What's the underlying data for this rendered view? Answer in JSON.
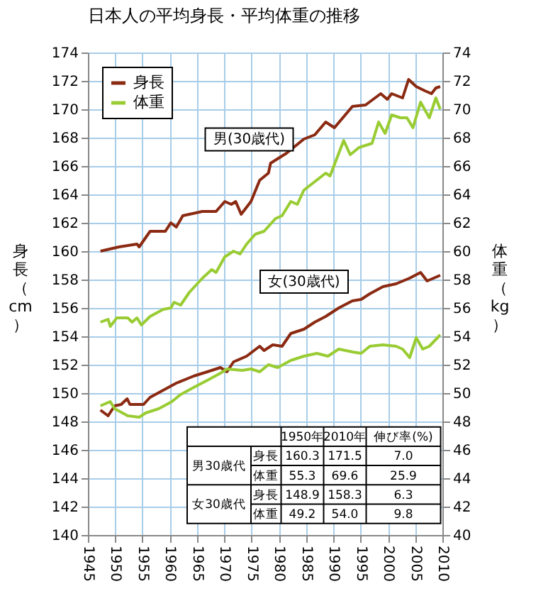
{
  "chart_data": {
    "type": "line",
    "title": "日本人の平均身長・平均体重の推移",
    "ylabel": "身長（cm）",
    "y2label": "体重（kg）",
    "xlim": [
      1945,
      2010
    ],
    "xticks": [
      1945,
      1950,
      1955,
      1960,
      1965,
      1970,
      1975,
      1980,
      1985,
      1990,
      1995,
      2000,
      2005,
      2010
    ],
    "ylim": [
      140,
      174
    ],
    "yticks": [
      140,
      142,
      144,
      146,
      148,
      150,
      152,
      154,
      156,
      158,
      160,
      162,
      164,
      166,
      168,
      170,
      172,
      174
    ],
    "y2lim": [
      40,
      74
    ],
    "y2ticks": [
      40,
      42,
      44,
      46,
      48,
      50,
      52,
      54,
      56,
      58,
      60,
      62,
      64,
      66,
      68,
      70,
      72,
      74
    ],
    "grid": true,
    "legend": "top left",
    "series": [
      {
        "name": "身長",
        "color": "#8b2a12",
        "x": [
          1947.3,
          1950.7,
          1954.0,
          1954.4,
          1956.4,
          1959.2,
          1960.2,
          1961.2,
          1962.4,
          1966.0,
          1968.5,
          1970.1,
          1971.3,
          1972.1,
          1973.1,
          1974.9,
          1976.5,
          1978.1,
          1978.5,
          1981.4,
          1984.6,
          1986.6,
          1988.6,
          1990.2,
          1993.5,
          1995.9,
          1998.7,
          1999.9,
          2000.7,
          2002.7,
          2003.8,
          2005.2,
          2006.8,
          2008.0,
          2008.8,
          2009.6
        ],
        "values": [
          160.0,
          160.3,
          160.5,
          160.3,
          161.4,
          161.4,
          162.0,
          161.7,
          162.5,
          162.8,
          162.8,
          163.5,
          163.3,
          163.5,
          162.6,
          163.5,
          165.0,
          165.5,
          166.2,
          166.9,
          167.9,
          168.2,
          169.1,
          168.7,
          170.2,
          170.3,
          171.1,
          170.7,
          171.1,
          170.8,
          172.1,
          171.6,
          171.3,
          171.1,
          171.5,
          171.6
        ]
      },
      {
        "name": "体重",
        "color": "#99cc33",
        "axis": "y2",
        "x": [
          1947.3,
          1948.7,
          1949.1,
          1950.3,
          1952.3,
          1953.1,
          1954.0,
          1954.8,
          1956.4,
          1958.8,
          1960.2,
          1960.8,
          1962.0,
          1963.6,
          1964.8,
          1966.0,
          1967.7,
          1968.5,
          1970.1,
          1971.7,
          1972.9,
          1974.1,
          1975.7,
          1977.3,
          1979.4,
          1980.6,
          1982.2,
          1983.4,
          1984.6,
          1986.6,
          1988.6,
          1989.4,
          1991.9,
          1993.1,
          1994.7,
          1997.1,
          1998.3,
          1999.5,
          2000.7,
          2002.3,
          2003.5,
          2004.6,
          2006.0,
          2007.6,
          2008.8,
          2009.6
        ],
        "values": [
          55.0,
          55.2,
          54.7,
          55.3,
          55.3,
          55.0,
          55.3,
          54.8,
          55.4,
          55.9,
          56.0,
          56.4,
          56.2,
          57.1,
          57.6,
          58.1,
          58.7,
          58.5,
          59.6,
          60.0,
          59.8,
          60.5,
          61.2,
          61.4,
          62.3,
          62.5,
          63.5,
          63.3,
          64.3,
          64.9,
          65.5,
          65.3,
          67.8,
          66.8,
          67.3,
          67.6,
          69.1,
          68.3,
          69.6,
          69.4,
          69.4,
          68.7,
          70.5,
          69.4,
          70.8,
          70.0
        ]
      },
      {
        "color": "#8b2a12",
        "x": [
          1947.3,
          1948.7,
          1949.9,
          1951.1,
          1952.2,
          1952.7,
          1955.2,
          1956.4,
          1958.8,
          1961.2,
          1964.4,
          1966.9,
          1969.3,
          1970.5,
          1971.7,
          1974.1,
          1976.5,
          1977.3,
          1978.9,
          1980.6,
          1982.2,
          1984.6,
          1986.6,
          1988.6,
          1991.0,
          1993.5,
          1995.1,
          1996.7,
          1999.1,
          2001.5,
          2004.0,
          2006.0,
          2007.2,
          2009.6
        ],
        "values": [
          148.8,
          148.4,
          149.1,
          149.2,
          149.6,
          149.2,
          149.2,
          149.7,
          150.2,
          150.7,
          151.2,
          151.5,
          151.8,
          151.5,
          152.2,
          152.6,
          153.3,
          153.0,
          153.4,
          153.3,
          154.2,
          154.5,
          155.0,
          155.4,
          156.0,
          156.5,
          156.6,
          157.0,
          157.5,
          157.7,
          158.1,
          158.5,
          157.9,
          158.3
        ]
      },
      {
        "color": "#99cc33",
        "axis": "y2",
        "x": [
          1947.3,
          1949.1,
          1949.9,
          1952.3,
          1954.4,
          1955.6,
          1958.0,
          1960.4,
          1962.0,
          1964.4,
          1966.9,
          1969.3,
          1970.5,
          1973.3,
          1974.9,
          1976.5,
          1978.1,
          1979.8,
          1982.2,
          1984.6,
          1987.0,
          1989.0,
          1991.0,
          1993.5,
          1995.1,
          1996.7,
          1999.1,
          2001.5,
          2002.7,
          2004.0,
          2005.2,
          2006.4,
          2007.6,
          2009.6
        ],
        "values": [
          49.1,
          49.4,
          48.9,
          48.4,
          48.3,
          48.6,
          48.9,
          49.4,
          49.9,
          50.4,
          50.9,
          51.4,
          51.7,
          51.6,
          51.7,
          51.5,
          52.0,
          51.8,
          52.3,
          52.6,
          52.8,
          52.6,
          53.1,
          52.9,
          52.8,
          53.3,
          53.4,
          53.3,
          53.1,
          52.5,
          53.9,
          53.1,
          53.3,
          54.1
        ]
      }
    ],
    "annotations": [
      "男(30歳代)",
      "女(30歳代)",
      "1950年",
      "2010年",
      "伸び率(%)",
      "男30歳代",
      "身長",
      "160.3",
      "171.5",
      "7.0",
      "体重",
      "55.3",
      "69.6",
      "25.9",
      "女30歳代",
      "身長",
      "148.9",
      "158.3",
      "6.3",
      "体重",
      "49.2",
      "54.0",
      "9.8"
    ]
  }
}
